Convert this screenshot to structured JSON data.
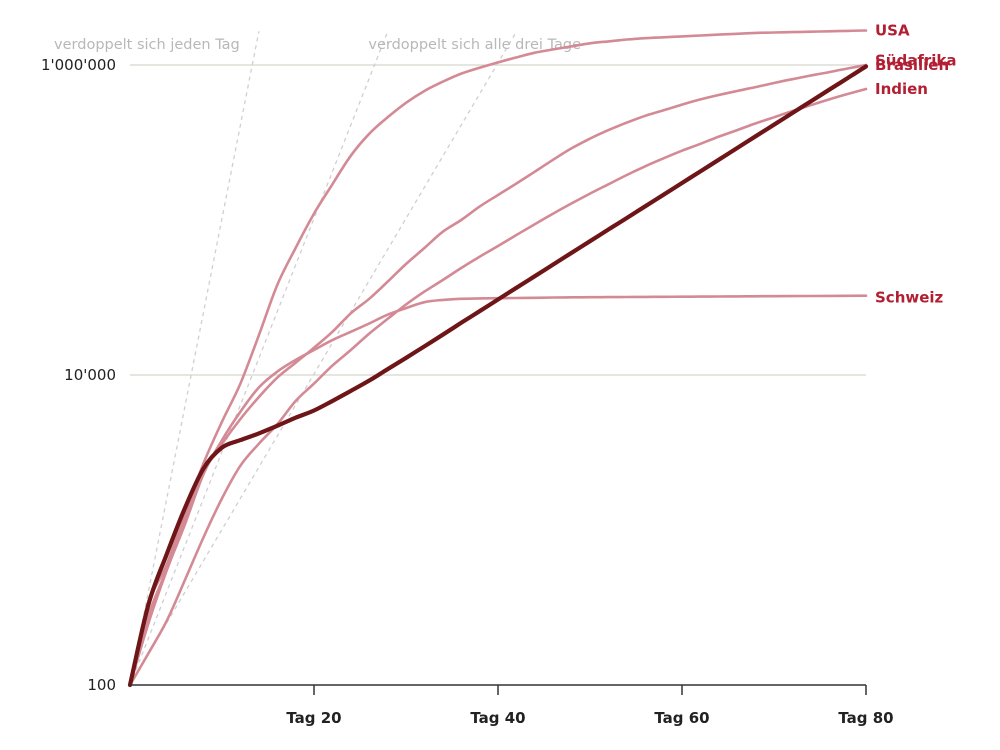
{
  "chart_data": {
    "type": "line",
    "title": "",
    "xlabel": "",
    "ylabel": "",
    "y_scale": "log",
    "ylim": [
      100,
      1650000
    ],
    "xlim": [
      0,
      80
    ],
    "yticks": [
      {
        "value": 100,
        "label": "100"
      },
      {
        "value": 10000,
        "label": "10'000"
      },
      {
        "value": 1000000,
        "label": "1'000'000"
      }
    ],
    "xticks": [
      {
        "value": 20,
        "label": "Tag 20"
      },
      {
        "value": 40,
        "label": "Tag 40"
      },
      {
        "value": 60,
        "label": "Tag 60"
      },
      {
        "value": 80,
        "label": "Tag 80"
      }
    ],
    "reference_lines": [
      {
        "label": "verdoppelt sich jeden Tag",
        "doubling_days": 1
      },
      {
        "label": "",
        "doubling_days": 2
      },
      {
        "label": "verdoppelt sich alle drei Tage",
        "doubling_days": 3
      }
    ],
    "x": [
      0,
      2,
      4,
      6,
      8,
      10,
      12,
      14,
      16,
      18,
      20,
      22,
      24,
      26,
      28,
      30,
      32,
      34,
      36,
      38,
      40,
      42,
      44,
      46,
      48,
      50,
      52,
      54,
      56,
      58,
      60,
      62,
      64,
      66,
      68,
      70,
      72,
      74,
      76,
      78,
      80
    ],
    "series": [
      {
        "name": "USA",
        "color": "#d38a95",
        "width": 2.6,
        "values": [
          100,
          330,
          600,
          1300,
          2700,
          5000,
          8800,
          18000,
          38000,
          66000,
          110000,
          170000,
          260000,
          360000,
          460000,
          570000,
          680000,
          780000,
          880000,
          960000,
          1040000,
          1120000,
          1200000,
          1260000,
          1320000,
          1380000,
          1420000,
          1460000,
          1490000,
          1510000,
          1530000,
          1550000,
          1570000,
          1590000,
          1610000,
          1620000,
          1630000,
          1640000,
          1650000,
          1660000,
          1670000
        ]
      },
      {
        "name": "Brasilien",
        "color": "#d38a95",
        "width": 2.6,
        "values": [
          100,
          280,
          560,
          1200,
          2400,
          3600,
          5200,
          7200,
          9600,
          12000,
          15000,
          19000,
          25000,
          31000,
          40000,
          52000,
          66000,
          84000,
          100000,
          122000,
          145000,
          172000,
          205000,
          245000,
          290000,
          335000,
          380000,
          425000,
          470000,
          510000,
          555000,
          600000,
          640000,
          680000,
          720000,
          765000,
          810000,
          855000,
          900000,
          950000,
          1000000
        ]
      },
      {
        "name": "Indien",
        "color": "#d38a95",
        "width": 2.6,
        "values": [
          100,
          160,
          260,
          480,
          900,
          1600,
          2600,
          3600,
          4800,
          6800,
          8800,
          11500,
          14500,
          18500,
          23000,
          28500,
          34500,
          41000,
          49000,
          58000,
          68000,
          80000,
          94000,
          110000,
          128000,
          148000,
          170000,
          195000,
          222000,
          250000,
          280000,
          310000,
          345000,
          380000,
          420000,
          460000,
          505000,
          550000,
          600000,
          650000,
          700000
        ]
      },
      {
        "name": "Schweiz",
        "color": "#d38a95",
        "width": 2.6,
        "values": [
          100,
          250,
          550,
          1100,
          2300,
          3800,
          5800,
          8300,
          10500,
          12500,
          14500,
          16800,
          19000,
          21500,
          24500,
          27000,
          29500,
          30500,
          31000,
          31200,
          31300,
          31400,
          31500,
          31600,
          31700,
          31750,
          31800,
          31850,
          31900,
          31950,
          32000,
          32050,
          32100,
          32150,
          32200,
          32250,
          32300,
          32350,
          32400,
          32450,
          32500
        ]
      },
      {
        "name": "Südafrika",
        "color": "#6e1518",
        "width": 4.2,
        "values": [
          100,
          330,
          700,
          1400,
          2500,
          3400,
          3800,
          4200,
          4700,
          5300,
          5900,
          6800,
          7900,
          9200,
          10900,
          12900,
          15300,
          18200,
          21700,
          25800,
          30700,
          36500,
          43400,
          51600,
          61400,
          73000,
          86800,
          103000,
          122500,
          145700,
          173300,
          206000,
          245000,
          291400,
          346500,
          412000,
          490000,
          582500,
          692500,
          823500,
          980000
        ]
      }
    ]
  }
}
